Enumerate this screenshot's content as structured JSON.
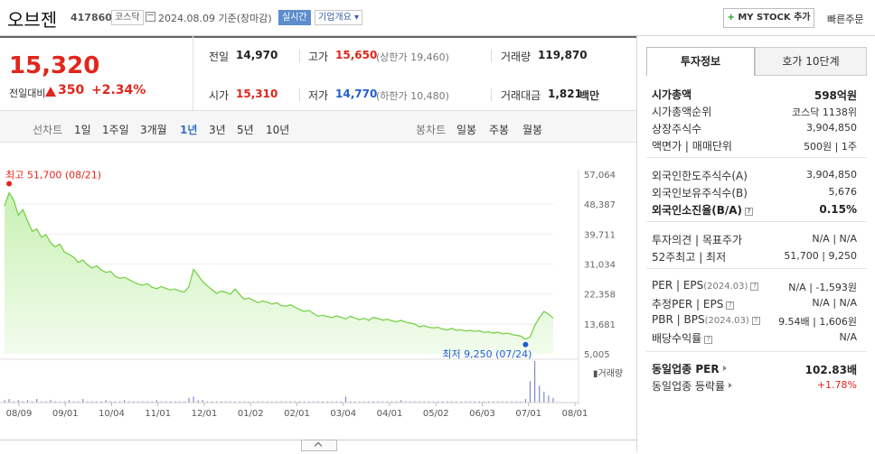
{
  "header": {
    "name": "오브젠",
    "code": "417860",
    "market": "코스닥",
    "base_date": "2024.08.09 기준(장마감)",
    "realtime": "실시간",
    "overview": "기업개요 ▾",
    "mystock": "MY STOCK 추가",
    "mystock_plus": "+",
    "quick_order": "빠른주문"
  },
  "summary": {
    "price": "15,320",
    "change_label": "전일대비",
    "change": "350",
    "change_pct": "+2.34%",
    "prev_label": "전일",
    "prev": "14,970",
    "high_label": "고가",
    "high": "15,650",
    "upper_limit": "(상한가 19,460)",
    "volume_label": "거래량",
    "volume": "119,870",
    "open_label": "시가",
    "open": "15,310",
    "low_label": "저가",
    "low": "14,770",
    "lower_limit": "(하한가 10,480)",
    "amount_label": "거래대금",
    "amount": "1,821",
    "amount_unit": "백만"
  },
  "period_tabs": {
    "line_chart_label": "선차트",
    "line": [
      "1일",
      "1주일",
      "3개월",
      "1년",
      "3년",
      "5년",
      "10년"
    ],
    "selected": "1년",
    "candle_chart_label": "봉차트",
    "candle": [
      "일봉",
      "주봉",
      "월봉"
    ]
  },
  "chart_data": {
    "type": "area",
    "ylim": [
      5005,
      57064
    ],
    "yticks": [
      "57,064",
      "48,387",
      "39,711",
      "31,034",
      "22,358",
      "13,681",
      "5,005"
    ],
    "xticks": [
      "08/09",
      "09/01",
      "10/04",
      "11/01",
      "12/01",
      "01/02",
      "02/01",
      "03/04",
      "04/01",
      "05/02",
      "06/03",
      "07/01",
      "08/01"
    ],
    "high_annotation": "최고 51,700 (08/21)",
    "low_annotation": "최저 9,250 (07/24)",
    "volume_label": "거래량",
    "series": [
      {
        "values": [
          47800,
          51700,
          49500,
          45200,
          46800,
          43500,
          40500,
          41200,
          38800,
          39500,
          37200,
          36000,
          36800,
          34500,
          33800,
          33000,
          31500,
          32200,
          30800,
          29900,
          30500,
          29300,
          28600,
          28900,
          27500,
          26900,
          27200,
          26500,
          25800,
          25200,
          24900,
          25300,
          24300,
          23900,
          24500,
          24000,
          23500,
          23800,
          23200,
          22900,
          24500,
          29500,
          27800,
          25900,
          24700,
          23600,
          22500,
          23200,
          22800,
          22300,
          23800,
          22200,
          20800,
          21200,
          20500,
          19800,
          20300,
          20000,
          19400,
          19800,
          19000,
          18800,
          19200,
          18500,
          17800,
          17300,
          17600,
          16700,
          15900,
          16200,
          15800,
          15500,
          16000,
          15600,
          15100,
          15900,
          15400,
          14900,
          15300,
          14700,
          15600,
          15200,
          14800,
          15000,
          14600,
          14300,
          14700,
          14200,
          13900,
          13600,
          12800,
          13200,
          12700,
          12500,
          12700,
          12200,
          11900,
          12400,
          11800,
          12000,
          11600,
          11800,
          11500,
          11700,
          11200,
          11400,
          11000,
          11300,
          10800,
          11000,
          10600,
          10400,
          10100,
          9250,
          9900,
          13200,
          15500,
          17300,
          16500,
          15320
        ]
      }
    ],
    "volume": [
      2,
      3,
      1,
      2,
      1,
      2,
      1,
      3,
      1,
      1,
      2,
      1,
      1,
      1,
      2,
      1,
      1,
      3,
      1,
      1,
      1,
      1,
      2,
      1,
      1,
      1,
      2,
      1,
      1,
      1,
      1,
      1,
      1,
      2,
      1,
      1,
      1,
      1,
      1,
      1,
      4,
      5,
      2,
      2,
      1,
      1,
      1,
      1,
      1,
      1,
      1,
      1,
      1,
      1,
      1,
      1,
      1,
      1,
      1,
      1,
      1,
      1,
      1,
      1,
      1,
      1,
      1,
      1,
      1,
      1,
      1,
      1,
      1,
      1,
      5,
      1,
      1,
      1,
      1,
      1,
      1,
      1,
      1,
      1,
      1,
      1,
      2,
      1,
      1,
      1,
      1,
      1,
      1,
      1,
      1,
      1,
      1,
      1,
      1,
      1,
      1,
      1,
      1,
      1,
      1,
      1,
      1,
      1,
      1,
      1,
      1,
      1,
      1,
      3,
      18,
      35,
      14,
      9,
      6,
      4
    ]
  },
  "invest_panel": {
    "tab_invest": "투자정보",
    "tab_orderbook": "호가 10단계",
    "rows1": [
      {
        "label": "시가총액",
        "value": "598억원",
        "bold": true
      },
      {
        "label": "시가총액순위",
        "value": "코스닥 1138위"
      },
      {
        "label": "상장주식수",
        "value": "3,904,850"
      },
      {
        "label": "액면가 | 매매단위",
        "value": "500원 | 1주"
      }
    ],
    "rows2": [
      {
        "label": "외국인한도주식수(A)",
        "value": "3,904,850"
      },
      {
        "label": "외국인보유주식수(B)",
        "value": "5,676"
      },
      {
        "label": "외국인소진율(B/A)",
        "value": "0.15%",
        "bold": true
      }
    ],
    "rows3": [
      {
        "label": "투자의견 | 목표주가",
        "value": "N/A | N/A"
      },
      {
        "label": "52주최고 | 최저",
        "value": "51,700 | 9,250"
      }
    ],
    "per_label": "PER | EPS",
    "per_period": "(2024.03)",
    "per_value": "N/A | -1,593원",
    "est_per_label": "추정PER | EPS",
    "est_per_value": "N/A | N/A",
    "pbr_label": "PBR | BPS",
    "pbr_period": "(2024.03)",
    "pbr_value": "9.54배 | 1,606원",
    "div_label": "배당수익률",
    "div_value": "N/A",
    "sector_per_label": "동일업종 PER",
    "sector_per_value": "102.83배",
    "sector_chg_label": "동일업종 등락률",
    "sector_chg_value": "+1.78%",
    "q": "?"
  },
  "colors": {
    "up": "#e1261c",
    "down": "#1f5fcc",
    "line": "#6fcf3d",
    "accent": "#5c8dcd"
  }
}
